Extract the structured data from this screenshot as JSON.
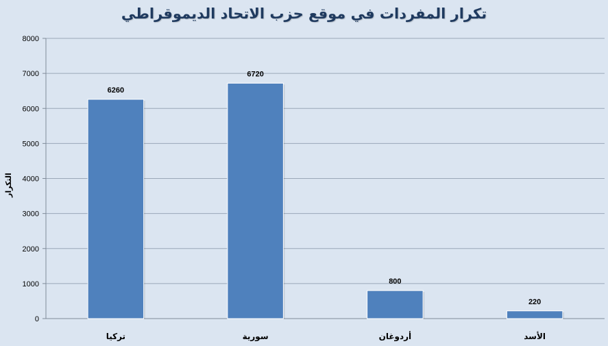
{
  "chart_data": {
    "type": "bar",
    "title": "تكرار المفردات في موقع حزب الاتحاد الديموقراطي",
    "ylabel": "التكرار",
    "xlabel": "",
    "categories": [
      "تركيا",
      "سورية",
      "أردوغان",
      "الأسد"
    ],
    "values": [
      6260,
      6720,
      800,
      220
    ],
    "data_labels": [
      "6260",
      "6720",
      "800",
      "220"
    ],
    "ylim": [
      0,
      8000
    ],
    "yticks": [
      "0",
      "1000",
      "2000",
      "3000",
      "4000",
      "5000",
      "6000",
      "7000",
      "8000"
    ],
    "grid": true,
    "legend": "none",
    "colors": {
      "bar": "#4f81bd",
      "bar_edge": "#3a6aa3",
      "background": "#dbe5f1",
      "grid": "#9aa7b8",
      "title": "#1f3a5f"
    }
  }
}
